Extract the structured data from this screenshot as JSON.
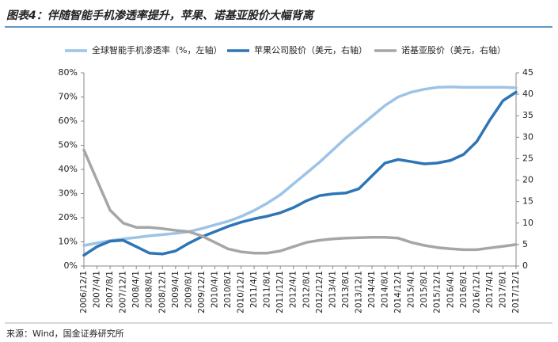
{
  "title": "图表4：伴随智能手机渗透率提升，苹果、诺基亚股价大幅背离",
  "source": "来源：Wind，国金证券研究所",
  "chart_data": {
    "type": "line",
    "categories": [
      "2006/12/1",
      "2007/4/1",
      "2007/8/1",
      "2007/12/1",
      "2008/4/1",
      "2008/8/1",
      "2008/12/1",
      "2009/4/1",
      "2009/8/1",
      "2009/12/1",
      "2010/4/1",
      "2010/8/1",
      "2010/12/1",
      "2011/4/1",
      "2011/8/1",
      "2011/12/1",
      "2012/4/1",
      "2012/8/1",
      "2012/12/1",
      "2013/4/1",
      "2013/8/1",
      "2013/12/1",
      "2014/4/1",
      "2014/8/1",
      "2014/12/1",
      "2015/4/1",
      "2015/8/1",
      "2015/12/1",
      "2016/4/1",
      "2016/8/1",
      "2016/12/1",
      "2017/4/1",
      "2017/8/1",
      "2017/12/1"
    ],
    "series": [
      {
        "name": "全球智能手机渗透率（%，左轴）",
        "color": "#9dc3e6",
        "axis": "y",
        "values": [
          8.5,
          9.5,
          10.5,
          11.2,
          11.8,
          12.5,
          13,
          13.5,
          14.2,
          15.5,
          17,
          18.5,
          20.5,
          23,
          26,
          29.5,
          34,
          38.5,
          43,
          48,
          53,
          57.5,
          62,
          66.5,
          70,
          72,
          73.2,
          74,
          74.2,
          74,
          74,
          74,
          74,
          73.8
        ]
      },
      {
        "name": "苹果公司股价（美元，右轴）",
        "color": "#2e75b6",
        "axis": "y2",
        "values": [
          2.5,
          4.5,
          5.8,
          6,
          4.5,
          3,
          2.8,
          3.5,
          5.3,
          6.8,
          8,
          9.2,
          10.2,
          11,
          11.6,
          12.4,
          13.6,
          15.2,
          16.4,
          16.8,
          17,
          18,
          21,
          24,
          24.8,
          24.3,
          23.8,
          24,
          24.6,
          26,
          29,
          34,
          38.5,
          40.5
        ]
      },
      {
        "name": "诺基亚股价（美元，右轴）",
        "color": "#a6a6a6",
        "axis": "y2",
        "values": [
          27,
          20,
          13,
          10,
          9,
          9,
          8.7,
          8.3,
          8,
          7,
          5.5,
          4,
          3.3,
          3,
          3,
          3.5,
          4.5,
          5.5,
          6,
          6.3,
          6.5,
          6.6,
          6.7,
          6.7,
          6.5,
          5.5,
          4.8,
          4.3,
          4,
          3.8,
          3.8,
          4.2,
          4.6,
          5
        ]
      }
    ],
    "ylim": [
      0,
      80
    ],
    "yticks": [
      {
        "value": 0,
        "label": "0%"
      },
      {
        "value": 10,
        "label": "10%"
      },
      {
        "value": 20,
        "label": "20%"
      },
      {
        "value": 30,
        "label": "30%"
      },
      {
        "value": 40,
        "label": "40%"
      },
      {
        "value": 50,
        "label": "50%"
      },
      {
        "value": 60,
        "label": "60%"
      },
      {
        "value": 70,
        "label": "70%"
      },
      {
        "value": 80,
        "label": "80%"
      }
    ],
    "y2lim": [
      0,
      45
    ],
    "y2ticks": [
      0,
      5,
      10,
      15,
      20,
      25,
      30,
      35,
      40,
      45
    ],
    "legend": "top"
  }
}
